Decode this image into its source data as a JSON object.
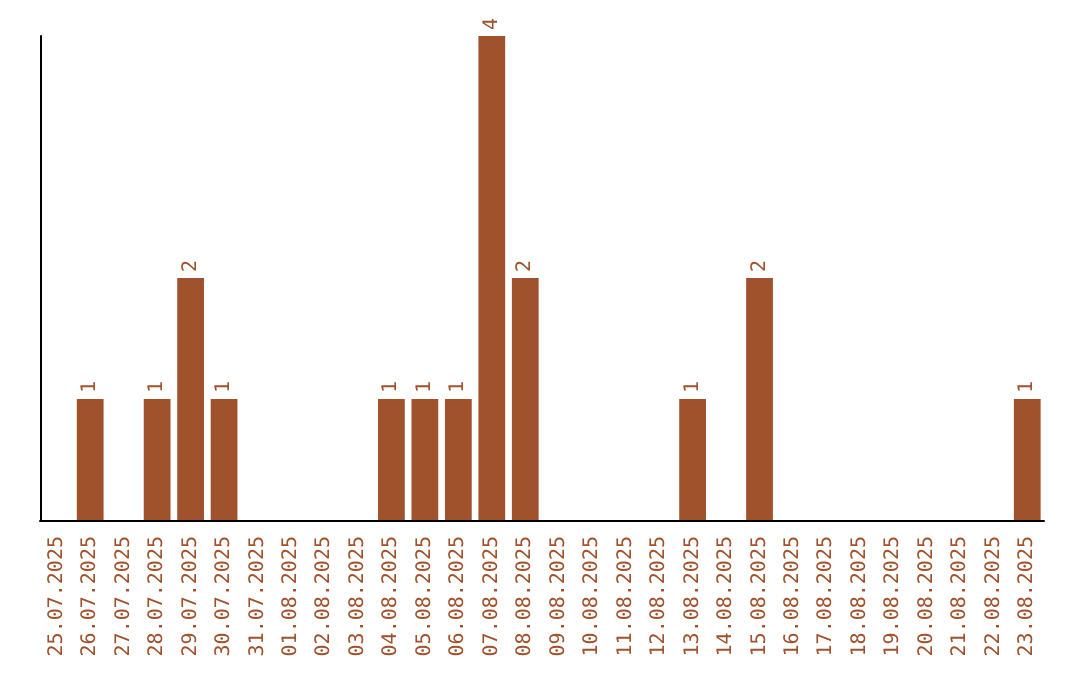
{
  "chart_data": {
    "type": "bar",
    "categories": [
      "25.07.2025",
      "26.07.2025",
      "27.07.2025",
      "28.07.2025",
      "29.07.2025",
      "30.07.2025",
      "31.07.2025",
      "01.08.2025",
      "02.08.2025",
      "03.08.2025",
      "04.08.2025",
      "05.08.2025",
      "06.08.2025",
      "07.08.2025",
      "08.08.2025",
      "09.08.2025",
      "10.08.2025",
      "11.08.2025",
      "12.08.2025",
      "13.08.2025",
      "14.08.2025",
      "15.08.2025",
      "16.08.2025",
      "17.08.2025",
      "18.08.2025",
      "19.08.2025",
      "20.08.2025",
      "21.08.2025",
      "22.08.2025",
      "23.08.2025"
    ],
    "values": [
      0,
      1,
      0,
      1,
      2,
      1,
      0,
      0,
      0,
      0,
      1,
      1,
      1,
      4,
      2,
      0,
      0,
      0,
      0,
      1,
      0,
      2,
      0,
      0,
      0,
      0,
      0,
      0,
      0,
      1
    ],
    "value_labels": [
      null,
      "1",
      null,
      "1",
      "2",
      "1",
      null,
      null,
      null,
      null,
      "1",
      "1",
      "1",
      "4",
      "2",
      null,
      null,
      null,
      null,
      "1",
      null,
      "2",
      null,
      null,
      null,
      null,
      null,
      null,
      null,
      "1"
    ],
    "color": "#a0522d",
    "grid": false
  }
}
